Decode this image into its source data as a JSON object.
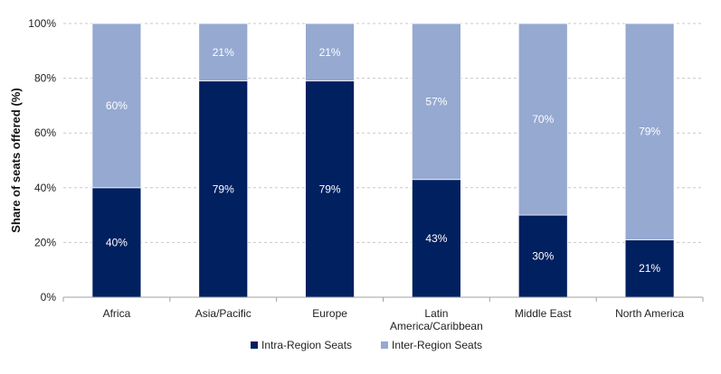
{
  "chart_data": {
    "type": "bar",
    "stacked": true,
    "categories": [
      "Africa",
      "Asia/Pacific",
      "Europe",
      "Latin America/Caribbean",
      "Middle East",
      "North America"
    ],
    "category_label_lines": [
      [
        "Africa"
      ],
      [
        "Asia/Pacific"
      ],
      [
        "Europe"
      ],
      [
        "Latin",
        "America/Caribbean"
      ],
      [
        "Middle East"
      ],
      [
        "North America"
      ]
    ],
    "series": [
      {
        "name": "Intra-Region Seats",
        "values": [
          40,
          79,
          79,
          43,
          30,
          21
        ],
        "labels": [
          "40%",
          "79%",
          "79%",
          "43%",
          "30%",
          "21%"
        ],
        "color": "#002060"
      },
      {
        "name": "Inter-Region Seats",
        "values": [
          60,
          21,
          21,
          57,
          70,
          79
        ],
        "labels": [
          "60%",
          "21%",
          "21%",
          "57%",
          "70%",
          "79%"
        ],
        "color": "#95A9D1"
      }
    ],
    "ylabel": "Share of seats offered (%)",
    "xlabel": "",
    "ylim": [
      0,
      100
    ],
    "yticks": [
      0,
      20,
      40,
      60,
      80,
      100
    ],
    "ytick_labels": [
      "0%",
      "20%",
      "40%",
      "60%",
      "80%",
      "100%"
    ],
    "grid": true,
    "legend_position": "bottom"
  }
}
